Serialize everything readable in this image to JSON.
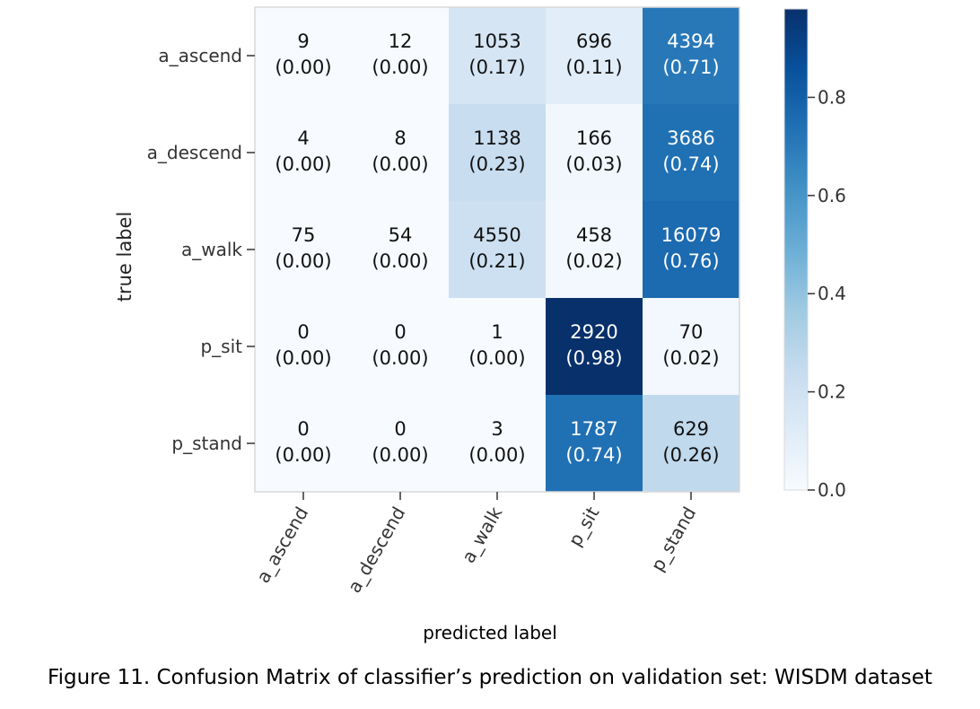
{
  "caption": "Figure 11. Confusion Matrix of classifier’s prediction on validation set: WISDM dataset",
  "chart_data": {
    "type": "heatmap",
    "xlabel": "predicted label",
    "ylabel": "true label",
    "row_labels": [
      "a_ascend",
      "a_descend",
      "a_walk",
      "p_sit",
      "p_stand"
    ],
    "col_labels": [
      "a_ascend",
      "a_descend",
      "a_walk",
      "p_sit",
      "p_stand"
    ],
    "counts": [
      [
        9,
        12,
        1053,
        696,
        4394
      ],
      [
        4,
        8,
        1138,
        166,
        3686
      ],
      [
        75,
        54,
        4550,
        458,
        16079
      ],
      [
        0,
        0,
        1,
        2920,
        70
      ],
      [
        0,
        0,
        3,
        1787,
        629
      ]
    ],
    "normalized": [
      [
        0.0,
        0.0,
        0.17,
        0.11,
        0.71
      ],
      [
        0.0,
        0.0,
        0.23,
        0.03,
        0.74
      ],
      [
        0.0,
        0.0,
        0.21,
        0.02,
        0.76
      ],
      [
        0.0,
        0.0,
        0.0,
        0.98,
        0.02
      ],
      [
        0.0,
        0.0,
        0.0,
        0.74,
        0.26
      ]
    ],
    "cell_labels": [
      [
        "(0.00)",
        "(0.00)",
        "(0.17)",
        "(0.11)",
        "(0.71)"
      ],
      [
        "(0.00)",
        "(0.00)",
        "(0.23)",
        "(0.03)",
        "(0.74)"
      ],
      [
        "(0.00)",
        "(0.00)",
        "(0.21)",
        "(0.02)",
        "(0.76)"
      ],
      [
        "(0.00)",
        "(0.00)",
        "(0.00)",
        "(0.98)",
        "(0.02)"
      ],
      [
        "(0.00)",
        "(0.00)",
        "(0.00)",
        "(0.74)",
        "(0.26)"
      ]
    ],
    "colorbar": {
      "range": [
        0.0,
        0.98
      ],
      "ticks": [
        0.0,
        0.2,
        0.4,
        0.6,
        0.8
      ],
      "tick_labels": [
        "0.0",
        "0.2",
        "0.4",
        "0.6",
        "0.8"
      ]
    },
    "colormap": [
      "#f7fbff",
      "#deebf7",
      "#c6dbef",
      "#9ecae1",
      "#6baed6",
      "#4292c6",
      "#2171b5",
      "#08519c",
      "#08306b"
    ]
  }
}
